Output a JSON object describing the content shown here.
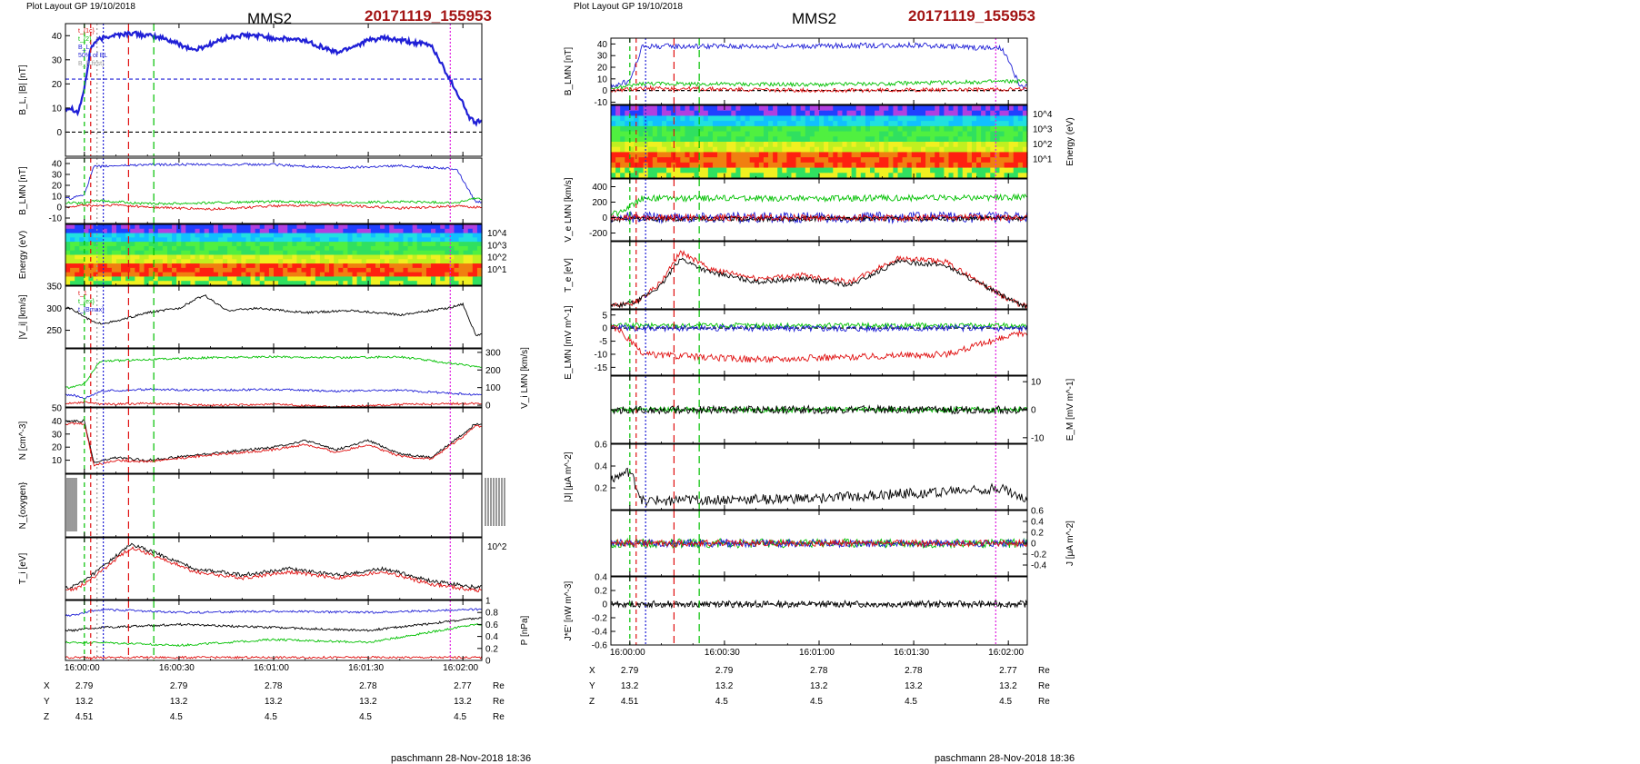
{
  "left": {
    "layout_label": "Plot Layout GP 19/10/2018",
    "spacecraft": "MMS2",
    "event_id": "20171119_155953",
    "footer": "paschmann 28-Nov-2018 18:36",
    "time_ticks": [
      "16:00:00",
      "16:00:30",
      "16:01:00",
      "16:01:30",
      "16:02:00"
    ],
    "ephemeris": [
      {
        "label": "X",
        "values": [
          "2.79",
          "2.79",
          "2.78",
          "2.78",
          "2.77"
        ],
        "unit": "Re"
      },
      {
        "label": "Y",
        "values": [
          "13.2",
          "13.2",
          "13.2",
          "13.2",
          "13.2"
        ],
        "unit": "Re"
      },
      {
        "label": "Z",
        "values": [
          "4.51",
          "4.5",
          "4.5",
          "4.5",
          "4.5"
        ],
        "unit": "Re"
      }
    ]
  },
  "right": {
    "layout_label": "Plot Layout GP 19/10/2018",
    "spacecraft": "MMS2",
    "event_id": "20171119_155953",
    "footer": "paschmann 28-Nov-2018 18:36",
    "time_ticks": [
      "16:00:00",
      "16:00:30",
      "16:01:00",
      "16:01:30",
      "16:02:00"
    ],
    "ephemeris": [
      {
        "label": "X",
        "values": [
          "2.79",
          "2.79",
          "2.78",
          "2.78",
          "2.77"
        ],
        "unit": "Re"
      },
      {
        "label": "Y",
        "values": [
          "13.2",
          "13.2",
          "13.2",
          "13.2",
          "13.2"
        ],
        "unit": "Re"
      },
      {
        "label": "Z",
        "values": [
          "4.51",
          "4.5",
          "4.5",
          "4.5",
          "4.5"
        ],
        "unit": "Re"
      }
    ]
  },
  "colors": {
    "event_id": "#a31515",
    "blue": "#1f1fd6",
    "red": "#e01010",
    "green": "#00c000",
    "black": "#000000",
    "magenta": "#e020e0",
    "gray": "#9a9a9a"
  },
  "chart_data": [
    {
      "type": "line",
      "figure": "left",
      "panel": 1,
      "ylabel": "B_L, |B| [nT]",
      "ylim": [
        -10,
        45
      ],
      "yticks": [
        0,
        10,
        20,
        30,
        40
      ],
      "legend": [
        "t_{1c}",
        "t_{2}",
        "B_L",
        "50% of BL",
        "B_{Lfirst}"
      ],
      "series": [
        {
          "name": "|B|",
          "color": "#1f1fd6",
          "x": [
            -4,
            -2,
            0,
            2,
            4,
            8,
            15,
            25,
            35,
            45,
            50,
            55,
            60,
            70,
            80,
            90,
            95,
            100,
            110,
            120,
            122,
            124,
            126
          ],
          "y": [
            10,
            8,
            18,
            35,
            38,
            40,
            41,
            39,
            34,
            39,
            40,
            40,
            39,
            38,
            33,
            38,
            39,
            38,
            36,
            12,
            6,
            4,
            5
          ]
        }
      ],
      "hlines": [
        0,
        22
      ]
    },
    {
      "type": "line",
      "figure": "left",
      "panel": 2,
      "ylabel": "B_LMN [nT]",
      "ylim": [
        -15,
        45
      ],
      "yticks": [
        -10,
        0,
        10,
        20,
        30,
        40
      ],
      "series": [
        {
          "name": "B_L",
          "color": "#1f1fd6",
          "x": [
            -4,
            0,
            3,
            10,
            20,
            40,
            60,
            80,
            100,
            118,
            124
          ],
          "y": [
            8,
            12,
            37,
            38,
            39,
            39,
            39,
            36,
            38,
            35,
            5
          ]
        },
        {
          "name": "B_M",
          "color": "#00c000",
          "x": [
            -4,
            0,
            3,
            10,
            20,
            40,
            60,
            80,
            100,
            118,
            124
          ],
          "y": [
            4,
            3,
            6,
            5,
            3,
            4,
            5,
            4,
            5,
            4,
            8
          ]
        },
        {
          "name": "B_N",
          "color": "#e01010",
          "x": [
            -4,
            0,
            3,
            10,
            20,
            40,
            60,
            80,
            100,
            118,
            124
          ],
          "y": [
            0,
            2,
            1,
            2,
            0,
            -2,
            1,
            2,
            -1,
            1,
            0
          ]
        }
      ]
    },
    {
      "type": "heatmap",
      "figure": "left",
      "panel": 3,
      "ylabel": "Energy (eV)",
      "yticks_label": [
        "10^4",
        "10^3",
        "10^2",
        "10^1"
      ]
    },
    {
      "type": "line",
      "figure": "left",
      "panel": 4,
      "ylabel": "|V_i| [km/s]",
      "ylim": [
        210,
        350
      ],
      "yticks": [
        250,
        300,
        350
      ],
      "legend": [
        "t_1",
        "t_{ex}",
        "t_{Bmax}"
      ],
      "series": [
        {
          "name": "|V_i|",
          "color": "#000000",
          "x": [
            -4,
            0,
            4,
            10,
            20,
            30,
            38,
            45,
            55,
            70,
            85,
            100,
            115,
            120,
            124
          ],
          "y": [
            300,
            280,
            265,
            270,
            290,
            300,
            330,
            295,
            300,
            290,
            295,
            285,
            300,
            310,
            240
          ]
        }
      ]
    },
    {
      "type": "line",
      "figure": "left",
      "panel": 5,
      "ylabel": "V_i LMN [km/s]",
      "ylim": [
        -10,
        320
      ],
      "yticks": [
        0,
        100,
        200,
        300
      ],
      "series": [
        {
          "name": "V_L",
          "color": "#00c000",
          "x": [
            -4,
            0,
            5,
            20,
            40,
            60,
            80,
            100,
            124
          ],
          "y": [
            100,
            120,
            250,
            260,
            270,
            275,
            270,
            275,
            220
          ]
        },
        {
          "name": "V_M",
          "color": "#1f1fd6",
          "x": [
            -4,
            0,
            5,
            20,
            40,
            60,
            80,
            100,
            124
          ],
          "y": [
            60,
            40,
            80,
            90,
            85,
            90,
            80,
            85,
            60
          ]
        },
        {
          "name": "V_N",
          "color": "#e01010",
          "x": [
            -4,
            0,
            5,
            20,
            40,
            60,
            80,
            100,
            124
          ],
          "y": [
            10,
            20,
            5,
            10,
            0,
            5,
            -10,
            5,
            10
          ]
        }
      ]
    },
    {
      "type": "line",
      "figure": "left",
      "panel": 6,
      "ylabel": "N [cm^-3]",
      "ylim": [
        0,
        50
      ],
      "yticks": [
        10,
        20,
        30,
        40,
        50
      ],
      "series": [
        {
          "name": "N_i",
          "color": "#000000",
          "x": [
            -4,
            0,
            3,
            10,
            20,
            40,
            60,
            70,
            80,
            90,
            100,
            110,
            120,
            124
          ],
          "y": [
            40,
            40,
            8,
            12,
            10,
            15,
            20,
            25,
            18,
            25,
            15,
            12,
            30,
            38
          ]
        },
        {
          "name": "N_e",
          "color": "#e01010",
          "x": [
            -4,
            0,
            3,
            10,
            20,
            40,
            60,
            70,
            80,
            90,
            100,
            110,
            120,
            124
          ],
          "y": [
            38,
            38,
            6,
            10,
            9,
            14,
            18,
            22,
            16,
            22,
            13,
            11,
            28,
            36
          ]
        }
      ]
    },
    {
      "type": "line",
      "figure": "left",
      "panel": 7,
      "ylabel": "N_{oxygen}"
    },
    {
      "type": "line",
      "figure": "left",
      "panel": 8,
      "ylabel": "T_i [eV]",
      "yticks_label": [
        "10^2"
      ],
      "series": [
        {
          "name": "T_i",
          "color": "#000000",
          "x": [
            -4,
            0,
            5,
            15,
            25,
            35,
            50,
            65,
            80,
            95,
            110,
            124
          ],
          "y": [
            0.2,
            0.3,
            0.5,
            0.9,
            0.7,
            0.5,
            0.4,
            0.5,
            0.4,
            0.5,
            0.3,
            0.2
          ]
        },
        {
          "name": "T_e",
          "color": "#e01010",
          "x": [
            -4,
            0,
            5,
            15,
            25,
            35,
            50,
            65,
            80,
            95,
            110,
            124
          ],
          "y": [
            0.15,
            0.25,
            0.45,
            0.85,
            0.65,
            0.45,
            0.35,
            0.45,
            0.35,
            0.45,
            0.25,
            0.15
          ]
        }
      ]
    },
    {
      "type": "line",
      "figure": "left",
      "panel": 9,
      "ylabel": "P [nPa]",
      "ylim": [
        0,
        1.0
      ],
      "yticks": [
        0.0,
        0.2,
        0.4,
        0.6,
        0.8,
        1.0
      ],
      "series": [
        {
          "name": "P_B",
          "color": "#1f1fd6",
          "x": [
            -4,
            5,
            30,
            60,
            90,
            124
          ],
          "y": [
            0.75,
            0.85,
            0.8,
            0.82,
            0.8,
            0.85
          ]
        },
        {
          "name": "P_tot",
          "color": "#000000",
          "x": [
            -4,
            5,
            30,
            60,
            90,
            124
          ],
          "y": [
            0.5,
            0.55,
            0.6,
            0.55,
            0.5,
            0.7
          ]
        },
        {
          "name": "P_i",
          "color": "#00c000",
          "x": [
            -4,
            5,
            30,
            60,
            90,
            124
          ],
          "y": [
            0.3,
            0.3,
            0.25,
            0.35,
            0.3,
            0.6
          ]
        },
        {
          "name": "P_e",
          "color": "#e01010",
          "x": [
            -4,
            5,
            30,
            60,
            90,
            124
          ],
          "y": [
            0.05,
            0.05,
            0.05,
            0.05,
            0.05,
            0.05
          ]
        }
      ]
    },
    {
      "type": "line",
      "figure": "right",
      "panel": 1,
      "ylabel": "B_LMN [nT]",
      "ylim": [
        -12,
        45
      ],
      "yticks": [
        -10,
        0,
        10,
        20,
        30,
        40
      ]
    },
    {
      "type": "heatmap",
      "figure": "right",
      "panel": 2,
      "ylabel": "Energy (eV)",
      "yticks_label": [
        "10^4",
        "10^3",
        "10^2",
        "10^1"
      ]
    },
    {
      "type": "line",
      "figure": "right",
      "panel": 3,
      "ylabel": "V_e LMN [km/s]",
      "ylim": [
        -300,
        500
      ],
      "yticks": [
        -200,
        0,
        200,
        400
      ]
    },
    {
      "type": "line",
      "figure": "right",
      "panel": 4,
      "ylabel": "T_e [eV]"
    },
    {
      "type": "line",
      "figure": "right",
      "panel": 5,
      "ylabel": "E_LMN [mV m^-1]",
      "ylim": [
        -18,
        7
      ],
      "yticks": [
        -15,
        -10,
        -5,
        0,
        5
      ]
    },
    {
      "type": "line",
      "figure": "right",
      "panel": 6,
      "ylabel": "E_M [mV m^-1]",
      "ylim": [
        -12,
        12
      ],
      "yticks": [
        -10,
        0,
        10
      ]
    },
    {
      "type": "line",
      "figure": "right",
      "panel": 7,
      "ylabel": "|J| [μA m^-2]",
      "ylim": [
        0,
        0.6
      ],
      "yticks": [
        0.2,
        0.4,
        0.6
      ]
    },
    {
      "type": "line",
      "figure": "right",
      "panel": 8,
      "ylabel": "J [μA m^-2]",
      "ylim": [
        -0.6,
        0.6
      ],
      "yticks": [
        -0.4,
        -0.2,
        0.0,
        0.2,
        0.4,
        0.6
      ]
    },
    {
      "type": "line",
      "figure": "right",
      "panel": 9,
      "ylabel": "J*E' [nW m^-3]",
      "ylim": [
        -0.6,
        0.4
      ],
      "yticks": [
        -0.6,
        -0.4,
        -0.2,
        0.0,
        0.2,
        0.4
      ]
    }
  ]
}
